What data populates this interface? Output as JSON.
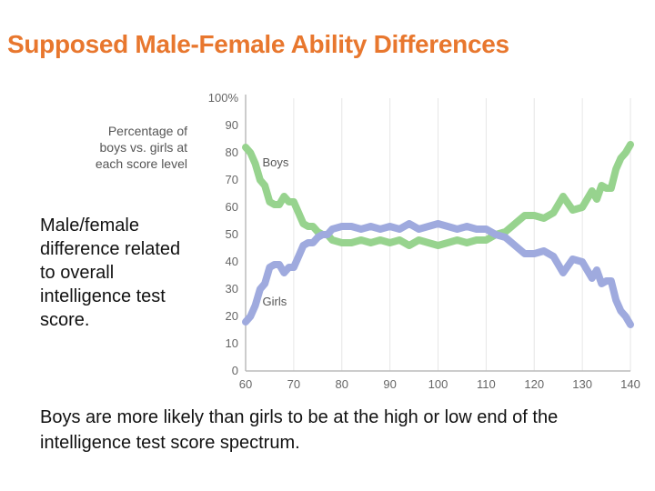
{
  "slide": {
    "title": "Supposed Male-Female Ability Differences",
    "side_text": "Male/female difference related to overall intelligence test score.",
    "bottom_text": "Boys are more likely than girls to be at the high or low end of the intelligence test score spectrum."
  },
  "chart_data": {
    "type": "line",
    "title": "",
    "note": "Percentage of boys vs. girls at each score level",
    "xlabel": "",
    "ylabel": "",
    "xlim": [
      60,
      140
    ],
    "ylim": [
      0,
      100
    ],
    "x_ticks": [
      60,
      70,
      80,
      90,
      100,
      110,
      120,
      130,
      140
    ],
    "x_tick_labels": [
      "60",
      "70",
      "80",
      "90",
      "100",
      "110",
      "120",
      "130",
      "140"
    ],
    "y_ticks": [
      0,
      10,
      20,
      30,
      40,
      50,
      60,
      70,
      80,
      90,
      100
    ],
    "y_tick_labels": [
      "0",
      "10",
      "20",
      "30",
      "40",
      "50",
      "60",
      "70",
      "80",
      "90",
      "100%"
    ],
    "grid": "vertical",
    "x": [
      60,
      61,
      62,
      63,
      64,
      65,
      66,
      67,
      68,
      69,
      70,
      71,
      72,
      73,
      74,
      75,
      76,
      77,
      78,
      80,
      82,
      84,
      86,
      88,
      90,
      92,
      94,
      96,
      98,
      100,
      102,
      104,
      106,
      108,
      110,
      112,
      114,
      116,
      118,
      120,
      122,
      124,
      126,
      128,
      130,
      131,
      132,
      133,
      134,
      135,
      136,
      137,
      138,
      139,
      140
    ],
    "series": [
      {
        "name": "Boys",
        "color": "#97D38E",
        "values": [
          82,
          80,
          76,
          70,
          68,
          62,
          61,
          61,
          64,
          62,
          62,
          58,
          54,
          53,
          53,
          51,
          50,
          50,
          48,
          47,
          47,
          48,
          47,
          48,
          47,
          48,
          46,
          48,
          47,
          46,
          47,
          48,
          47,
          48,
          48,
          50,
          51,
          54,
          57,
          57,
          56,
          58,
          64,
          59,
          60,
          63,
          66,
          63,
          68,
          67,
          67,
          74,
          78,
          80,
          83
        ]
      },
      {
        "name": "Girls",
        "color": "#9FAADE",
        "values": [
          18,
          20,
          24,
          30,
          32,
          38,
          39,
          39,
          36,
          38,
          38,
          42,
          46,
          47,
          47,
          49,
          50,
          50,
          52,
          53,
          53,
          52,
          53,
          52,
          53,
          52,
          54,
          52,
          53,
          54,
          53,
          52,
          53,
          52,
          52,
          50,
          49,
          46,
          43,
          43,
          44,
          42,
          36,
          41,
          40,
          37,
          34,
          37,
          32,
          33,
          33,
          26,
          22,
          20,
          17
        ]
      }
    ]
  }
}
